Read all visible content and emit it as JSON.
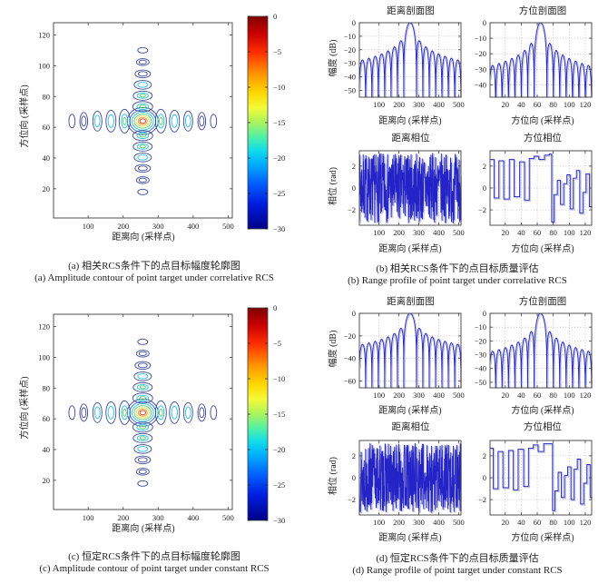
{
  "colors": {
    "background": "#ffffff",
    "line": "#2323c8",
    "line_shadow": "#a9aec8",
    "grid": "#9c9c9c",
    "axis": "#3f3f3f",
    "text": "#1f1f1f",
    "contour_palette": {
      "navy": "#3c4796",
      "blue": "#2f6ad2",
      "cyan": "#25bfe0",
      "green": "#55cf63",
      "yellow": "#e3df3b",
      "orange": "#f5952f",
      "red": "#d93a2b"
    },
    "jet_stops": [
      [
        0,
        "#7f0000"
      ],
      [
        0.08,
        "#c80000"
      ],
      [
        0.17,
        "#ff2f00"
      ],
      [
        0.27,
        "#ff9400"
      ],
      [
        0.36,
        "#ffd800"
      ],
      [
        0.43,
        "#f4fa39"
      ],
      [
        0.5,
        "#a8f45f"
      ],
      [
        0.57,
        "#4ef0a8"
      ],
      [
        0.63,
        "#11dcea"
      ],
      [
        0.7,
        "#00aaff"
      ],
      [
        0.78,
        "#0064ff"
      ],
      [
        0.88,
        "#001ee0"
      ],
      [
        1,
        "#000088"
      ]
    ]
  },
  "labels": {
    "range_axis": "距离向 (采样点)",
    "azimuth_axis": "方位向 (采样点)",
    "amplitude": "幅度 (dB)",
    "phase": "相位 (rad)",
    "range_profile_title": "距离剖面图",
    "azimuth_profile_title": "方位剖面图",
    "range_phase_title": "距离相位",
    "azimuth_phase_title": "方位相位"
  },
  "captions": {
    "a_zh": "(a) 相关RCS条件下的点目标幅度轮廓图",
    "a_en": "(a) Amplitude contour of point target under correlative RCS",
    "b_zh": "(b) 相关RCS条件下的点目标质量评估",
    "b_en": "(b) Range profile of point target under correlative RCS",
    "c_zh": "(c) 恒定RCS条件下的点目标幅度轮廓图",
    "c_en": "(c) Amplitude contour of point target under constant RCS",
    "d_zh": "(d) 恒定RCS条件下的点目标质量评估",
    "d_en": "(d) Range profile of point target under constant RCS"
  },
  "chart_data": [
    {
      "id": "contour_a",
      "type": "heatmap",
      "subtype": "contour",
      "title": "",
      "xlabel": "距离向 (采样点)",
      "ylabel": "方位向 (采样点)",
      "xlim": [
        1,
        512
      ],
      "ylim": [
        1,
        128
      ],
      "xticks": [
        100,
        200,
        300,
        400,
        500
      ],
      "yticks": [
        20,
        40,
        60,
        80,
        100,
        120
      ],
      "peak": {
        "x": 256,
        "y": 64,
        "value_db": 0
      },
      "pattern": "cross of sinc sidelobes along range and azimuth through peak",
      "contour_levels_db": [
        -5,
        -10,
        -15,
        -20,
        -25,
        -30
      ],
      "colorbar": {
        "colormap": "jet",
        "range_db": [
          -30,
          0
        ],
        "ticks": [
          0,
          -5,
          -10,
          -15,
          -20,
          -25,
          -30
        ]
      }
    },
    {
      "id": "b_range_profile",
      "type": "line",
      "title": "距离剖面图",
      "xlabel": "距离向 (采样点)",
      "ylabel": "幅度 (dB)",
      "model": "sinc_db",
      "center": 256,
      "null_spacing": 32,
      "peak_db": 0,
      "first_sidelobe_db": -13.3,
      "xlim": [
        1,
        512
      ],
      "ylim": [
        -55,
        0
      ],
      "xticks": [
        100,
        200,
        300,
        400,
        500
      ],
      "yticks": [
        0,
        -10,
        -20,
        -30,
        -40,
        -50
      ],
      "grid": true
    },
    {
      "id": "b_azimuth_profile",
      "type": "line",
      "title": "方位剖面图",
      "xlabel": "方位向 (采样点)",
      "ylabel": "",
      "model": "sinc_db",
      "center": 64,
      "null_spacing": 8,
      "peak_db": 0,
      "first_sidelobe_db": -13.3,
      "xlim": [
        1,
        128
      ],
      "ylim": [
        -48,
        0
      ],
      "xticks": [
        20,
        40,
        60,
        80,
        100,
        120
      ],
      "yticks": [
        0,
        -10,
        -20,
        -30,
        -40
      ],
      "grid": true
    },
    {
      "id": "b_range_phase",
      "type": "line",
      "title": "距离相位",
      "xlabel": "距离向 (采样点)",
      "ylabel": "相位 (rad)",
      "model": "random_phase",
      "n": 512,
      "seed": 7,
      "amplitude_rad": 3.2,
      "xlim": [
        1,
        512
      ],
      "ylim": [
        -3.4,
        3.4
      ],
      "xticks": [
        100,
        200,
        300,
        400,
        500
      ],
      "yticks": [
        2,
        0,
        -2
      ],
      "grid": true
    },
    {
      "id": "b_azimuth_phase",
      "type": "line",
      "title": "方位相位",
      "xlabel": "方位向 (采样点)",
      "ylabel": "",
      "model": "steps",
      "steps": [
        [
          1,
          2.6
        ],
        [
          6,
          -0.9
        ],
        [
          12,
          2.5
        ],
        [
          18,
          -1.0
        ],
        [
          25,
          2.6
        ],
        [
          31,
          -0.8
        ],
        [
          38,
          2.4
        ],
        [
          44,
          -1.1
        ],
        [
          50,
          2.7
        ],
        [
          56,
          2.9
        ],
        [
          62,
          2.6
        ],
        [
          69,
          3.0
        ],
        [
          75,
          3.1
        ],
        [
          78,
          -3.1
        ],
        [
          81,
          -0.6
        ],
        [
          85,
          0.7
        ],
        [
          89,
          -1.5
        ],
        [
          93,
          0.4
        ],
        [
          97,
          1.2
        ],
        [
          101,
          -1.9
        ],
        [
          105,
          0.9
        ],
        [
          109,
          1.6
        ],
        [
          113,
          -2.3
        ],
        [
          117,
          -0.4
        ],
        [
          121,
          1.3
        ],
        [
          125,
          -1.7
        ],
        [
          128,
          -1.7
        ]
      ],
      "xlim": [
        1,
        128
      ],
      "ylim": [
        -3.4,
        3.4
      ],
      "xticks": [
        20,
        40,
        60,
        80,
        100,
        120
      ],
      "yticks": [
        2,
        0,
        -2
      ],
      "grid": true
    },
    {
      "id": "contour_c",
      "type": "heatmap",
      "subtype": "contour",
      "title": "",
      "xlabel": "距离向 (采样点)",
      "ylabel": "方位向 (采样点)",
      "xlim": [
        1,
        512
      ],
      "ylim": [
        1,
        128
      ],
      "xticks": [
        100,
        200,
        300,
        400,
        500
      ],
      "yticks": [
        20,
        40,
        60,
        80,
        100,
        120
      ],
      "peak": {
        "x": 256,
        "y": 64,
        "value_db": 0
      },
      "pattern": "cross of sinc sidelobes along range and azimuth through peak",
      "contour_levels_db": [
        -5,
        -10,
        -15,
        -20,
        -25,
        -30
      ],
      "colorbar": {
        "colormap": "jet",
        "range_db": [
          -30,
          0
        ],
        "ticks": [
          0,
          -5,
          -10,
          -15,
          -20,
          -25,
          -30
        ]
      }
    },
    {
      "id": "d_range_profile",
      "type": "line",
      "title": "距离剖面图",
      "xlabel": "距离向 (采样点)",
      "ylabel": "幅度 (dB)",
      "model": "sinc_db",
      "center": 256,
      "null_spacing": 32,
      "peak_db": 0,
      "first_sidelobe_db": -13.3,
      "xlim": [
        1,
        512
      ],
      "ylim": [
        -66,
        0
      ],
      "xticks": [
        100,
        200,
        300,
        400,
        500
      ],
      "yticks": [
        0,
        -20,
        -40,
        -60
      ],
      "grid": true
    },
    {
      "id": "d_azimuth_profile",
      "type": "line",
      "title": "方位剖面图",
      "xlabel": "方位向 (采样点)",
      "ylabel": "",
      "model": "sinc_db",
      "center": 64,
      "null_spacing": 8,
      "peak_db": 0,
      "first_sidelobe_db": -13.3,
      "xlim": [
        1,
        128
      ],
      "ylim": [
        -54,
        0
      ],
      "xticks": [
        20,
        40,
        60,
        80,
        100,
        120
      ],
      "yticks": [
        0,
        -10,
        -20,
        -30,
        -40,
        -50
      ],
      "grid": true
    },
    {
      "id": "d_range_phase",
      "type": "line",
      "title": "距离相位",
      "xlabel": "距离向 (采样点)",
      "ylabel": "相位 (rad)",
      "model": "random_phase",
      "n": 512,
      "seed": 13,
      "amplitude_rad": 3.2,
      "xlim": [
        1,
        512
      ],
      "ylim": [
        -3.4,
        3.4
      ],
      "xticks": [
        100,
        200,
        300,
        400,
        500
      ],
      "yticks": [
        2,
        0,
        -2
      ],
      "grid": true
    },
    {
      "id": "d_azimuth_phase",
      "type": "line",
      "title": "方位相位",
      "xlabel": "方位向 (采样点)",
      "ylabel": "",
      "model": "steps",
      "steps": [
        [
          1,
          2.7
        ],
        [
          5,
          -1.0
        ],
        [
          11,
          2.4
        ],
        [
          17,
          -0.9
        ],
        [
          24,
          2.5
        ],
        [
          30,
          -1.1
        ],
        [
          36,
          2.6
        ],
        [
          43,
          -0.8
        ],
        [
          49,
          2.7
        ],
        [
          55,
          3.0
        ],
        [
          61,
          2.4
        ],
        [
          68,
          3.1
        ],
        [
          76,
          3.1
        ],
        [
          79,
          -3.0
        ],
        [
          82,
          -1.2
        ],
        [
          86,
          0.5
        ],
        [
          90,
          -1.8
        ],
        [
          94,
          0.2
        ],
        [
          98,
          1.0
        ],
        [
          102,
          -2.0
        ],
        [
          106,
          0.8
        ],
        [
          110,
          1.7
        ],
        [
          114,
          -2.4
        ],
        [
          118,
          -0.5
        ],
        [
          122,
          1.2
        ],
        [
          126,
          -1.8
        ],
        [
          128,
          -1.8
        ]
      ],
      "xlim": [
        1,
        128
      ],
      "ylim": [
        -3.4,
        3.4
      ],
      "xticks": [
        20,
        40,
        60,
        80,
        100,
        120
      ],
      "yticks": [
        2,
        0,
        -2
      ],
      "grid": true
    }
  ]
}
